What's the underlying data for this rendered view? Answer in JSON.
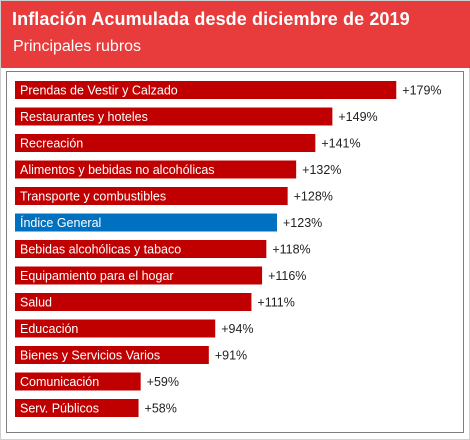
{
  "header": {
    "title": "Inflación Acumulada desde diciembre de 2019",
    "subtitle": "Principales rubros"
  },
  "colors": {
    "header_bg": "#e83b3b",
    "bar_default": "#c00000",
    "bar_highlight": "#0070c0",
    "bar_text": "#ffffff",
    "value_text": "#222222"
  },
  "chart_data": {
    "type": "bar",
    "orientation": "horizontal",
    "title": "Inflación Acumulada desde diciembre de 2019",
    "subtitle": "Principales rubros",
    "value_format": "+{value}%",
    "xlim": [
      0,
      200
    ],
    "grid": false,
    "legend": "none",
    "categories": [
      "Prendas de Vestir y Calzado",
      "Restaurantes y hoteles",
      "Recreación",
      "Alimentos y bebidas no alcohólicas",
      "Transporte y combustibles",
      "Índice General",
      "Bebidas alcohólicas y tabaco",
      "Equipamiento para el hogar",
      "Salud",
      "Educación",
      "Bienes y Servicios Varios",
      "Comunicación",
      "Serv. Públicos"
    ],
    "values": [
      179,
      149,
      141,
      132,
      128,
      123,
      118,
      116,
      111,
      94,
      91,
      59,
      58
    ],
    "value_labels": [
      "+179%",
      "+149%",
      "+141%",
      "+132%",
      "+128%",
      "+123%",
      "+118%",
      "+116%",
      "+111%",
      "+94%",
      "+91%",
      "+59%",
      "+58%"
    ],
    "highlight": "Índice General"
  }
}
